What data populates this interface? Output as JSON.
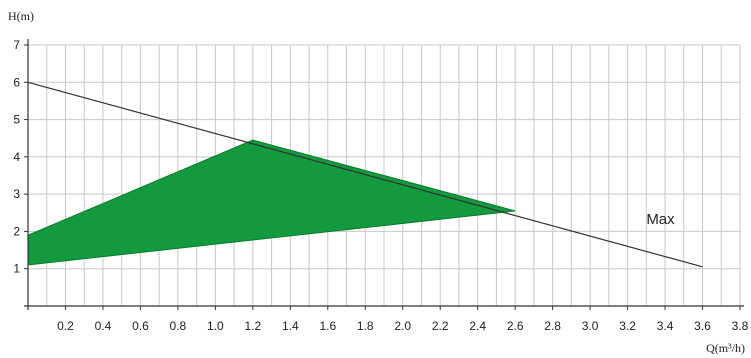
{
  "chart_data": {
    "type": "area",
    "xlabel": "Q(m³/h)",
    "ylabel": "H(m)",
    "xlim": [
      0,
      3.8
    ],
    "ylim": [
      0,
      7
    ],
    "x_ticks": [
      "0.2",
      "0.4",
      "0.6",
      "0.8",
      "1.0",
      "1.2",
      "1.4",
      "1.6",
      "1.8",
      "2.0",
      "2.2",
      "2.4",
      "2.6",
      "2.8",
      "3.0",
      "3.2",
      "3.4",
      "3.6",
      "3.8"
    ],
    "y_ticks": [
      "1",
      "2",
      "3",
      "4",
      "5",
      "6",
      "7"
    ],
    "x_minor_step": 0.1,
    "grid": true,
    "series": [
      {
        "name": "Max",
        "kind": "line",
        "points": [
          [
            0,
            6.0
          ],
          [
            3.6,
            1.05
          ]
        ]
      },
      {
        "kind": "area",
        "points": [
          [
            0,
            1.9
          ],
          [
            1.2,
            4.45
          ],
          [
            2.6,
            2.55
          ],
          [
            0,
            1.1
          ]
        ]
      }
    ],
    "annotations": [
      {
        "text": "Max",
        "x": 3.3,
        "y": 2.2
      }
    ],
    "colors": {
      "area_fill": "#149a3e",
      "area_stroke": "#0b7a2e",
      "line": "#333333",
      "grid": "#c8c8c8",
      "axis": "#333333"
    }
  }
}
